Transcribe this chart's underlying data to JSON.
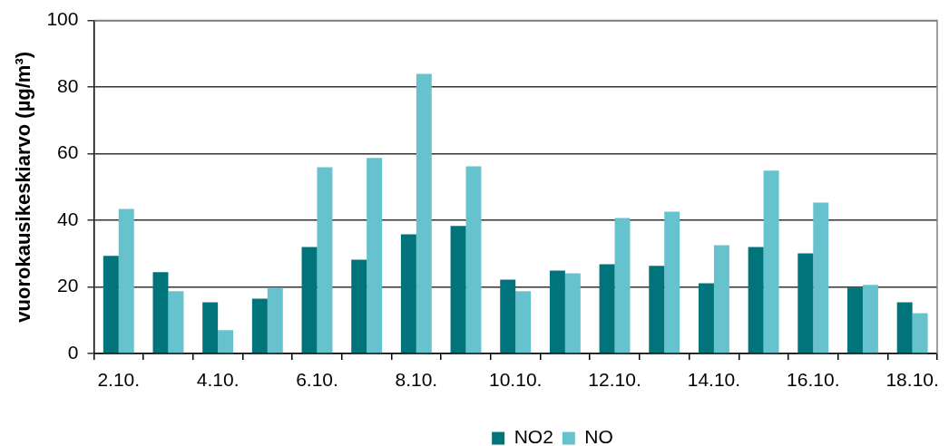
{
  "chart_data": {
    "type": "bar",
    "categories": [
      "2.10.",
      null,
      "4.10.",
      null,
      "6.10.",
      null,
      "8.10.",
      null,
      "10.10.",
      null,
      "12.10.",
      null,
      "14.10.",
      null,
      "16.10.",
      null,
      "18.10."
    ],
    "series": [
      {
        "name": "NO2",
        "color": "#00737b",
        "values": [
          29.3,
          24.4,
          15.4,
          16.5,
          32.0,
          28.2,
          35.8,
          38.3,
          22.2,
          24.9,
          26.8,
          26.3,
          21.1,
          32.0,
          30.1,
          19.8,
          15.4
        ]
      },
      {
        "name": "NO",
        "color": "#66c2cc",
        "values": [
          43.4,
          18.7,
          7.0,
          19.8,
          55.9,
          58.7,
          84.0,
          56.2,
          18.7,
          24.1,
          40.7,
          42.6,
          32.5,
          54.9,
          45.3,
          20.6,
          12.1
        ]
      }
    ],
    "ylabel": "vuorokausikeskiarvo (µg/m³)",
    "ylim": [
      0,
      100
    ],
    "yticks": [
      0,
      20,
      40,
      60,
      80,
      100
    ],
    "grid": "y",
    "legend": "bottom"
  }
}
